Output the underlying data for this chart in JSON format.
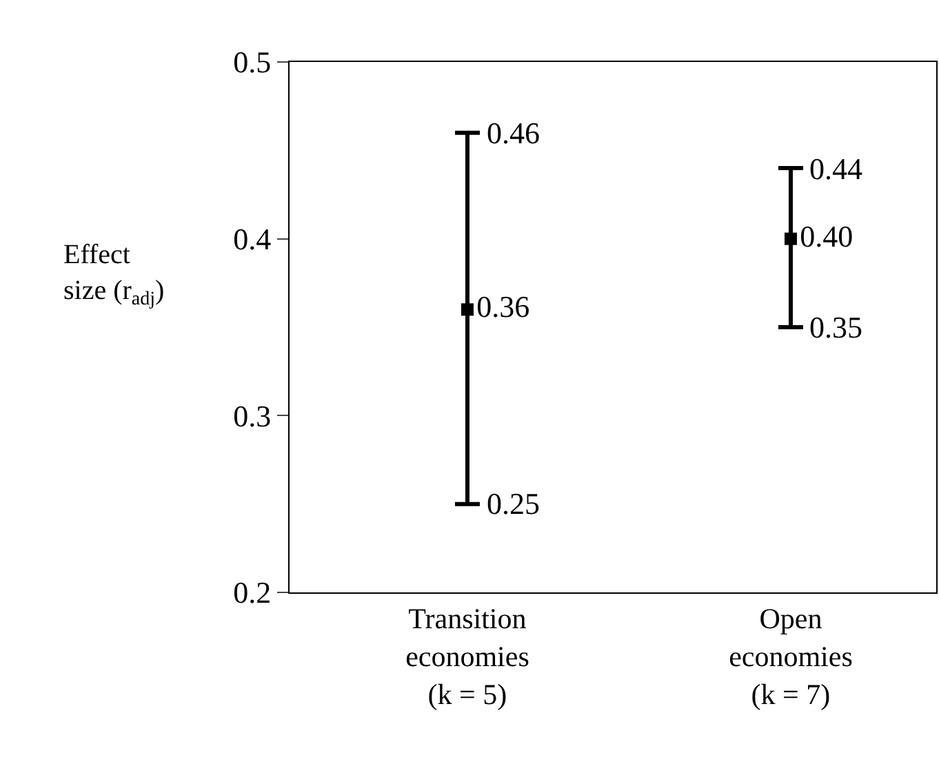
{
  "chart_data": {
    "type": "scatter",
    "ylabel": "Effect\nsize (r$_{adj}$)",
    "categories": [
      "Transition\neconomies\n(k = 5)",
      "Open\neconomies\n(k = 7)"
    ],
    "values": [
      0.36,
      0.4
    ],
    "errors": [
      [
        0.25,
        0.46
      ],
      [
        0.35,
        0.44
      ]
    ],
    "value_labels": [
      "0.36",
      "0.40"
    ],
    "color": "#000000",
    "marker": "square",
    "ylim": [
      0.2,
      0.5
    ],
    "yticks": [
      0.2,
      0.3,
      0.4,
      0.5
    ],
    "annotations": [
      {
        "text": "0.46",
        "x": "Transition\neconomies\n(k = 5)",
        "y": 0.46
      },
      {
        "text": "0.25",
        "x": "Transition\neconomies\n(k = 5)",
        "y": 0.25
      },
      {
        "text": "0.44",
        "x": "Open\neconomies\n(k = 7)",
        "y": 0.44
      },
      {
        "text": "0.35",
        "x": "Open\neconomies\n(k = 7)",
        "y": 0.35
      }
    ]
  }
}
